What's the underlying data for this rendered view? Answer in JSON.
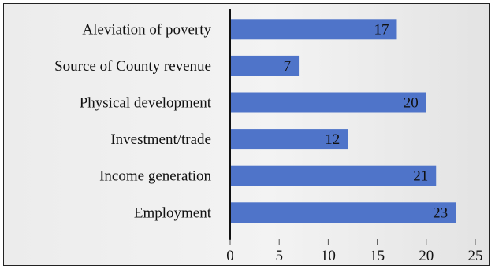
{
  "chart_data": {
    "type": "bar",
    "orientation": "horizontal",
    "categories": [
      "Aleviation of poverty",
      "Source of County revenue",
      "Physical development",
      "Investment/trade",
      "Income generation",
      "Employment"
    ],
    "values": [
      17,
      7,
      20,
      12,
      21,
      23
    ],
    "xlim": [
      0,
      25
    ],
    "xticks": [
      "0",
      "5",
      "10",
      "15",
      "20",
      "25"
    ],
    "data_labels": true,
    "grid": false,
    "legend": "none",
    "bar_color": "#4f74c9",
    "title": "",
    "xlabel": "",
    "ylabel": ""
  }
}
